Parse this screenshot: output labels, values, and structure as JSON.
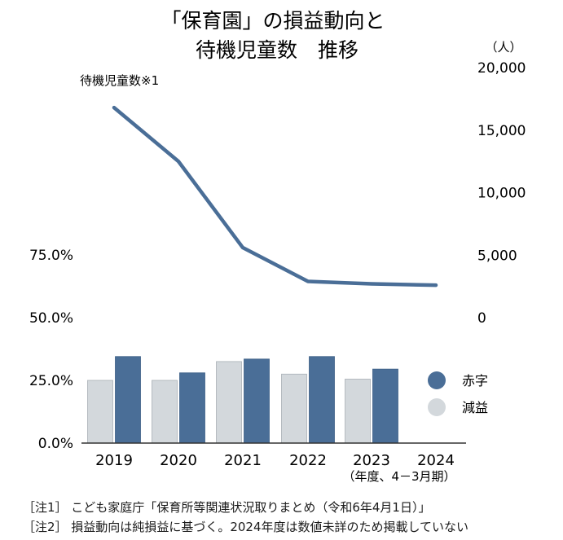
{
  "title_line1": "「保育園」の損益動向と",
  "title_line2": "待機児童数　推移",
  "right_axis_unit": "（人）",
  "line_label": "待機児童数※1",
  "period_label": "（年度、4－3月期）",
  "footnotes": [
    "［注1］ こども家庭庁「保育所等関連状況取りまとめ（令和6年4月1日）」",
    "［注2］ 損益動向は純損益に基づく。2024年度は数値未詳のため掲載していない"
  ],
  "colors": {
    "deficit": "#4a6e97",
    "decline": "#d3d8dc",
    "line": "#4a6e97"
  },
  "chart_data": {
    "type": "bar",
    "categories": [
      "2019",
      "2020",
      "2021",
      "2022",
      "2023",
      "2024"
    ],
    "series": [
      {
        "name": "減益",
        "values": [
          25.0,
          25.0,
          32.5,
          27.5,
          25.5,
          null
        ]
      },
      {
        "name": "赤字",
        "values": [
          34.5,
          28.0,
          33.5,
          34.5,
          29.5,
          null
        ]
      }
    ],
    "left_axis": {
      "ticks": [
        "0.0%",
        "25.0%",
        "50.0%",
        "75.0%"
      ],
      "values": [
        0,
        25,
        50,
        75
      ]
    },
    "line_series": {
      "values": [
        16800,
        12500,
        5600,
        2900,
        2700,
        2600
      ]
    },
    "right_axis": {
      "ticks": [
        "0",
        "5,000",
        "10,000",
        "15,000",
        "20,000"
      ],
      "values": [
        0,
        5000,
        10000,
        15000,
        20000
      ],
      "ylim": [
        0,
        20000
      ]
    }
  }
}
